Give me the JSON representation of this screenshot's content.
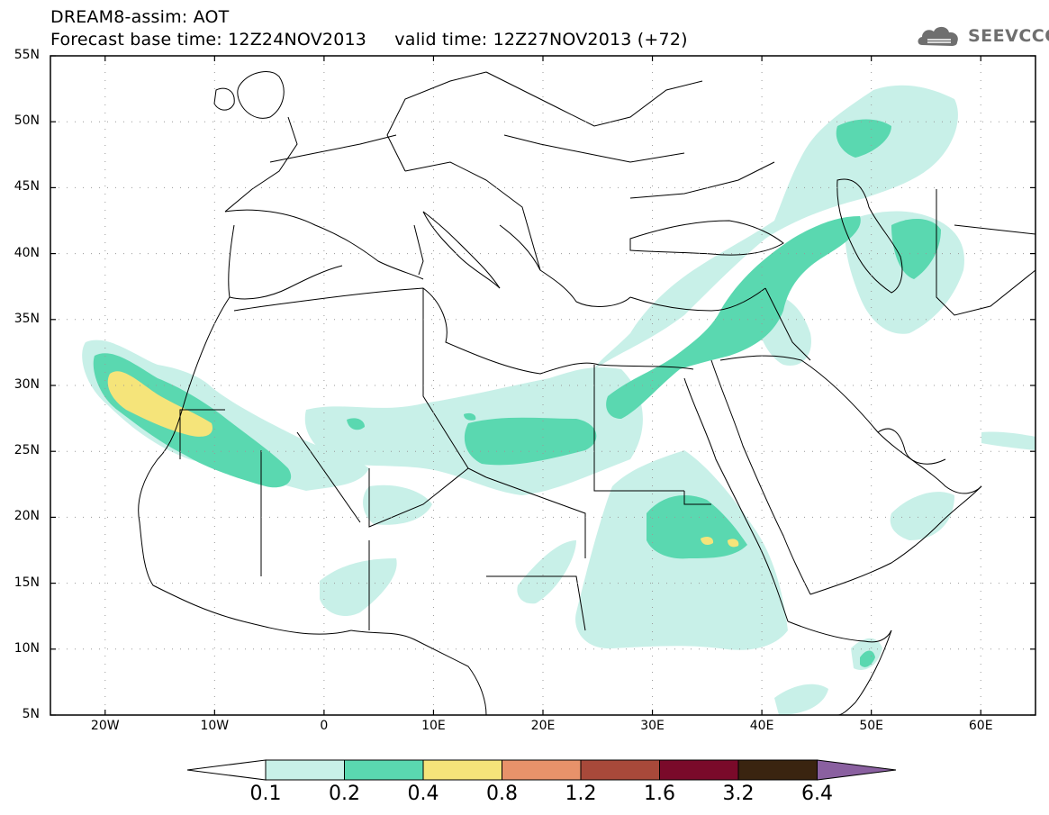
{
  "header": {
    "title_line1": "DREAM8-assim: AOT",
    "title_line2": "Forecast base time: 12Z24NOV2013     valid time: 12Z27NOV2013 (+72)",
    "logo_text": "SEEVCCC"
  },
  "map": {
    "lat_labels": [
      "55N",
      "50N",
      "45N",
      "40N",
      "35N",
      "30N",
      "25N",
      "20N",
      "15N",
      "10N",
      "5N"
    ],
    "lon_labels": [
      "20W",
      "10W",
      "0",
      "10E",
      "20E",
      "30E",
      "40E",
      "50E",
      "60E"
    ],
    "lon_range": [
      -25,
      65
    ],
    "lat_range": [
      5,
      55
    ],
    "colors": {
      "c01": "#c8f0e8",
      "c02": "#5ad8b0",
      "c04": "#f5e47a",
      "c08": "#e8926a",
      "c12": "#a8493a",
      "c16": "#7a0a2a",
      "c32": "#3a2410",
      "c64": "#8a60a0"
    }
  },
  "colorbar": {
    "labels": [
      "0.1",
      "0.2",
      "0.4",
      "0.8",
      "1.2",
      "1.6",
      "3.2",
      "6.4"
    ],
    "colors": [
      "#c8f0e8",
      "#5ad8b0",
      "#f5e47a",
      "#e8926a",
      "#a8493a",
      "#7a0a2a",
      "#3a2410"
    ],
    "over_color": "#8a60a0",
    "under_color": "#ffffff"
  }
}
